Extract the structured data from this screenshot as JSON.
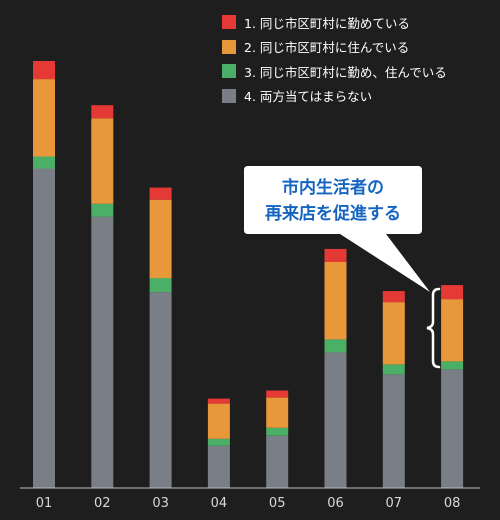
{
  "chart_data": {
    "type": "bar",
    "stacked": true,
    "categories": [
      "01",
      "02",
      "03",
      "04",
      "05",
      "06",
      "07",
      "08"
    ],
    "series": [
      {
        "name": "4. 両方当てはまらない",
        "color": "#7a7e86",
        "values": [
          318,
          270,
          195,
          42,
          52,
          135,
          113,
          118
        ]
      },
      {
        "name": "3. 同じ市区町村に勤め、住んでいる",
        "color": "#4caf67",
        "values": [
          12,
          13,
          14,
          7,
          8,
          13,
          10,
          8
        ]
      },
      {
        "name": "2. 同じ市区町村に住んでいる",
        "color": "#e8983a",
        "values": [
          77,
          85,
          78,
          35,
          30,
          77,
          62,
          62
        ]
      },
      {
        "name": "1. 同じ市区町村に勤めている",
        "color": "#e53935",
        "values": [
          18,
          13,
          12,
          5,
          7,
          13,
          11,
          14
        ]
      }
    ],
    "ylim": [
      0,
      430
    ],
    "legend": [
      {
        "label": "1. 同じ市区町村に勤めている",
        "color": "#e53935"
      },
      {
        "label": "2. 同じ市区町村に住んでいる",
        "color": "#e8983a"
      },
      {
        "label": "3. 同じ市区町村に勤め、住んでいる",
        "color": "#4caf67"
      },
      {
        "label": "4. 両方当てはまらない",
        "color": "#7a7e86"
      }
    ],
    "legend_position": "top-right",
    "grid": false,
    "annotation": {
      "line1": "市内生活者の",
      "line2": "再来店を促進する",
      "target_category": "08"
    }
  }
}
